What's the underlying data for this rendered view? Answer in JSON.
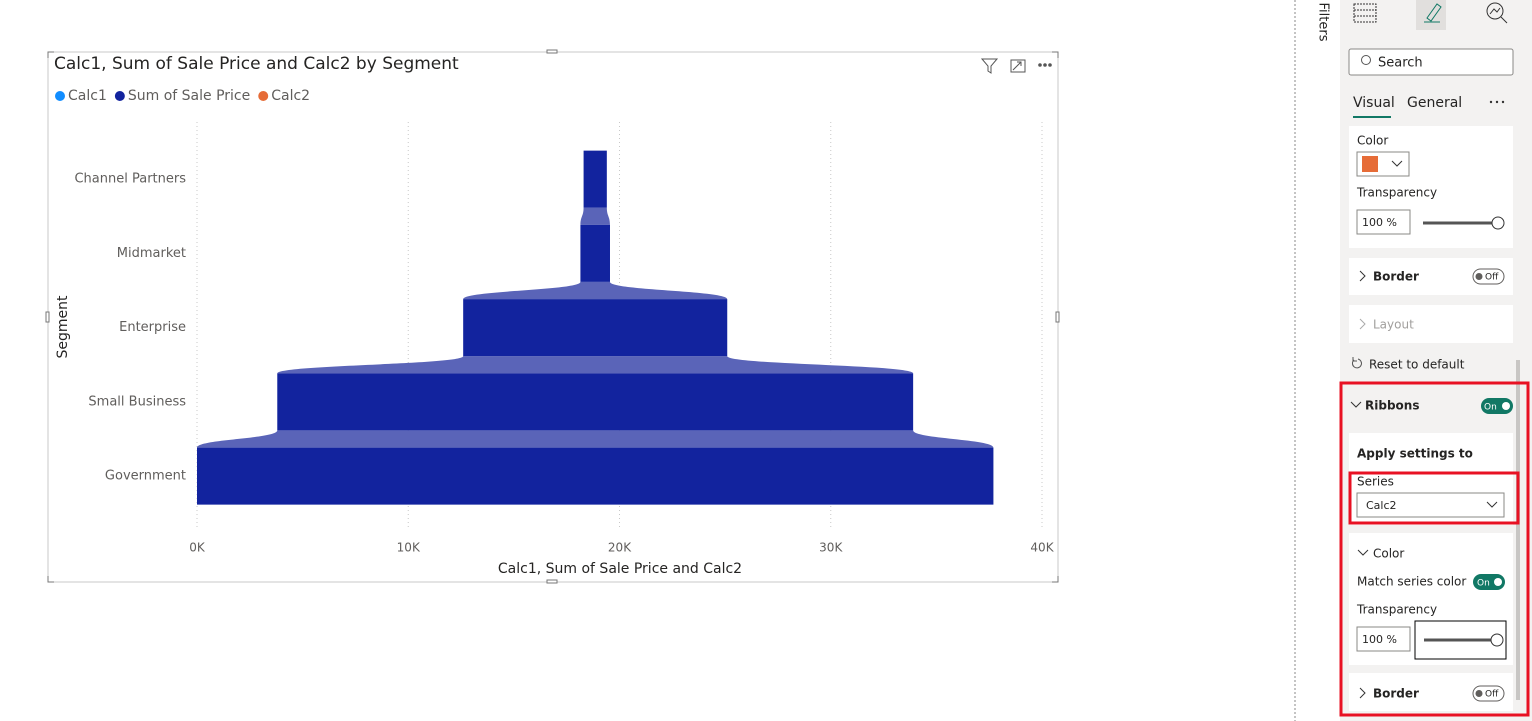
{
  "chart_data": {
    "type": "ribbon",
    "title": "Calc1, Sum of Sale Price and Calc2 by Segment",
    "x_label": "Calc1, Sum of Sale Price and Calc2",
    "y_label": "Segment",
    "categories": [
      "Channel Partners",
      "Midmarket",
      "Enterprise",
      "Small Business",
      "Government"
    ],
    "series": [
      {
        "name": "Calc1",
        "color": "#118dff",
        "values": [
          null,
          null,
          null,
          null,
          null
        ]
      },
      {
        "name": "Sum of Sale Price",
        "color": "#12239e",
        "values": [
          1100,
          1400,
          12500,
          30100,
          37700
        ]
      },
      {
        "name": "Calc2",
        "color": "#e66c37",
        "values": [
          null,
          null,
          null,
          null,
          null
        ]
      }
    ],
    "ribbon_color": "#5a64b8",
    "xlim": [
      0,
      40000
    ],
    "xticks": [
      {
        "value": 0,
        "label": "0K"
      },
      {
        "value": 10000,
        "label": "10K"
      },
      {
        "value": 20000,
        "label": "20K"
      },
      {
        "value": 30000,
        "label": "30K"
      },
      {
        "value": 40000,
        "label": "40K"
      }
    ],
    "grid": true
  },
  "panel": {
    "filters": "Filters",
    "search": "Search",
    "tabs": [
      "Visual",
      "General"
    ],
    "color_card": {
      "color_label": "Color",
      "transparency_label": "Transparency",
      "transparency_value": "100 %"
    },
    "border1": {
      "label": "Border",
      "toggle": "Off"
    },
    "layout": "Layout",
    "reset": "Reset to default",
    "ribbons": {
      "label": "Ribbons",
      "toggle": "On",
      "apply_settings_to": "Apply settings to",
      "series_label": "Series",
      "series_value": "Calc2",
      "color_section": "Color",
      "match_series_color": "Match series color",
      "match_toggle": "On",
      "transparency_label": "Transparency",
      "transparency_value": "100 %",
      "border_label": "Border",
      "border_toggle": "Off"
    }
  }
}
